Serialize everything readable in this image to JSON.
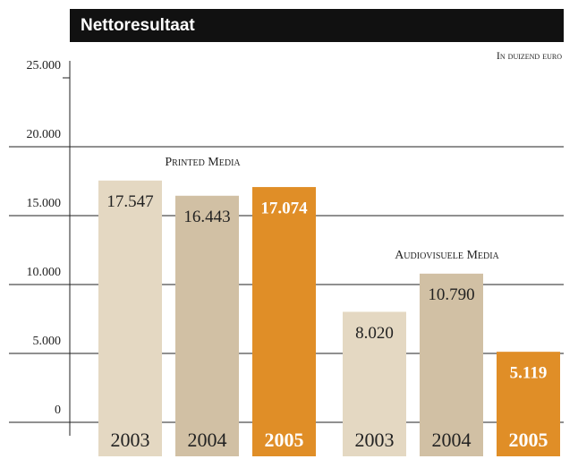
{
  "chart_data": {
    "type": "bar",
    "title": "Nettoresultaat",
    "unit_label": "In duizend euro",
    "groups": [
      "Printed Media",
      "Audiovisuele Media"
    ],
    "series": [
      {
        "name": "2003",
        "color": "#e4d8c2",
        "values": [
          17547,
          8020
        ],
        "value_labels": [
          "17.547",
          "8.020"
        ]
      },
      {
        "name": "2004",
        "color": "#d1c0a4",
        "values": [
          16443,
          10790
        ],
        "value_labels": [
          "16.443",
          "10.790"
        ]
      },
      {
        "name": "2005",
        "color": "#e08e27",
        "values": [
          17074,
          5119
        ],
        "value_labels": [
          "17.074",
          "5.119"
        ]
      }
    ],
    "highlight_series": "2005",
    "ylim": [
      0,
      25000
    ],
    "yticks": [
      0,
      {
        "value": 5000,
        "label": "5.000"
      },
      {
        "value": 10000,
        "label": "10.000"
      },
      {
        "value": 15000,
        "label": "15.000"
      },
      {
        "value": 20000,
        "label": "20.000"
      },
      {
        "value": 25000,
        "label": "25.000"
      }
    ],
    "grid": true
  }
}
